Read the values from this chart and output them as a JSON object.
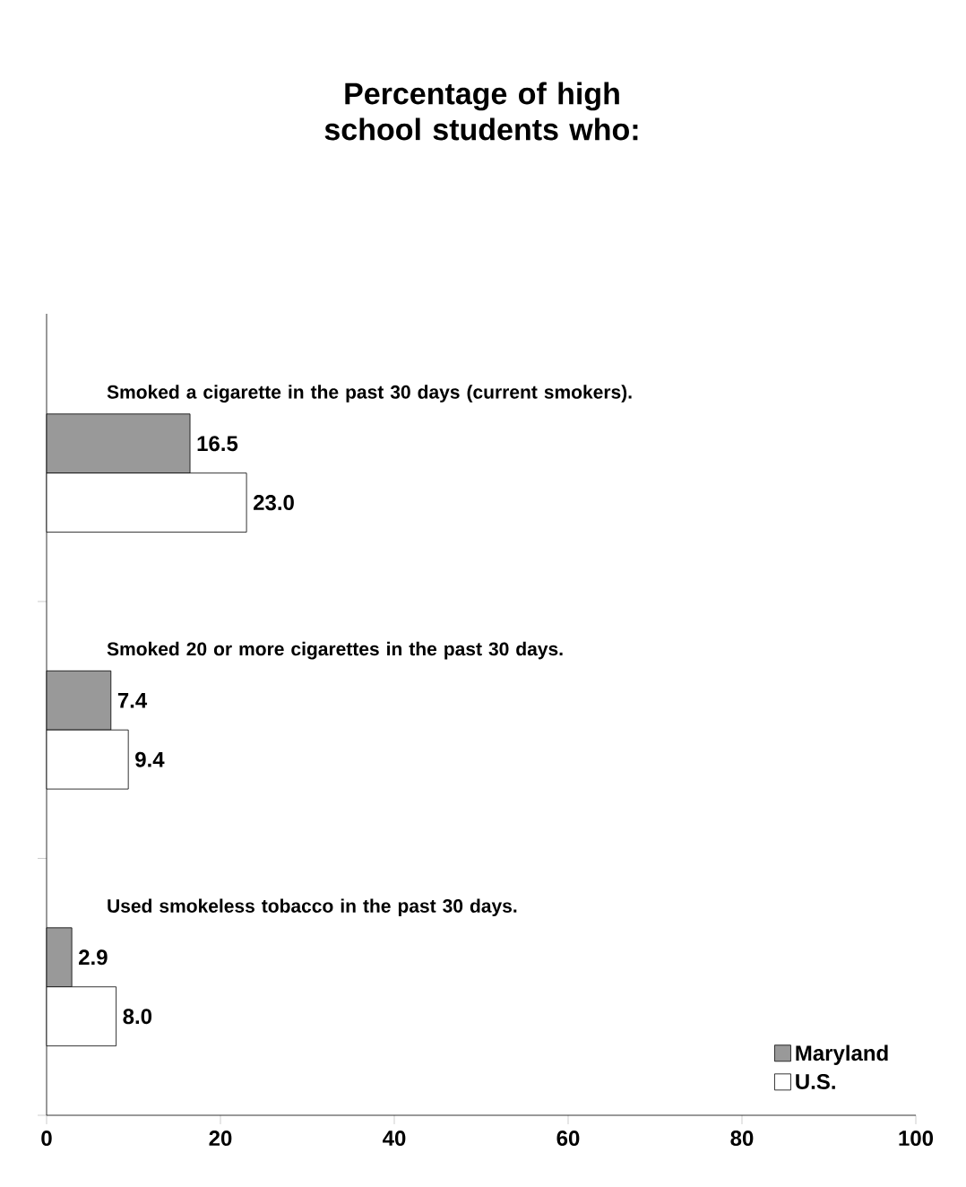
{
  "chart_data": {
    "type": "bar",
    "orientation": "horizontal",
    "title": "Percentage of high school students who:",
    "categories": [
      "Smoked a cigarette in the past 30 days (current smokers).",
      "Smoked 20 or more cigarettes in the past 30 days.",
      "Used smokeless tobacco in the past 30 days."
    ],
    "series": [
      {
        "name": "Maryland",
        "color": "#999999",
        "values": [
          16.5,
          7.4,
          2.9
        ],
        "value_labels": [
          "16.5",
          "7.4",
          "2.9"
        ]
      },
      {
        "name": "U.S.",
        "color": "#ffffff",
        "values": [
          23.0,
          9.4,
          8.0
        ],
        "value_labels": [
          "23.0",
          "9.4",
          "8.0"
        ]
      }
    ],
    "xlim": [
      0,
      100
    ],
    "xticks": [
      0,
      20,
      40,
      60,
      80,
      100
    ],
    "legend": "bottom right",
    "grid": false
  }
}
